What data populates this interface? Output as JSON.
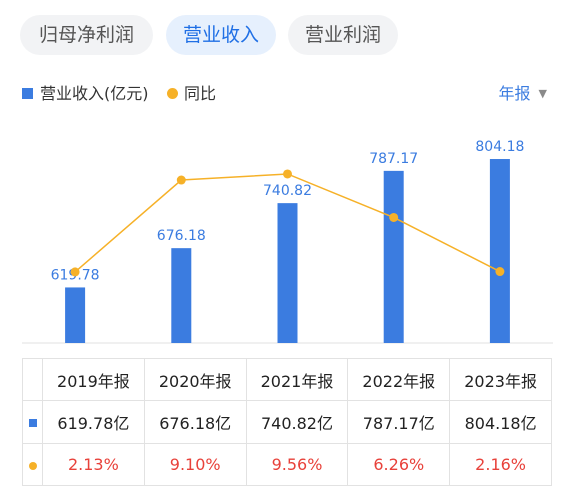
{
  "tabs": [
    {
      "label": "归母净利润",
      "active": false
    },
    {
      "label": "营业收入",
      "active": true
    },
    {
      "label": "营业利润",
      "active": false
    }
  ],
  "legend": {
    "bar_label": "营业收入(亿元)",
    "line_label": "同比"
  },
  "period_selector": {
    "value": "年报"
  },
  "colors": {
    "bar": "#3b7ce0",
    "line": "#f6b128",
    "negative_text": "#e8413a",
    "accent": "#1f6fe5"
  },
  "chart_data": {
    "type": "bar",
    "categories": [
      "2019年报",
      "2020年报",
      "2021年报",
      "2022年报",
      "2023年报"
    ],
    "series": [
      {
        "name": "营业收入(亿元)",
        "type": "bar",
        "values": [
          619.78,
          676.18,
          740.82,
          787.17,
          804.18
        ]
      },
      {
        "name": "同比",
        "type": "line",
        "values": [
          2.13,
          9.1,
          9.56,
          6.26,
          2.16
        ]
      }
    ],
    "bar_labels": [
      "619.78",
      "676.18",
      "740.82",
      "787.17",
      "804.18"
    ]
  },
  "table": {
    "headers": [
      "2019年报",
      "2020年报",
      "2021年报",
      "2022年报",
      "2023年报"
    ],
    "revenue_row": [
      "619.78亿",
      "676.18亿",
      "740.82亿",
      "787.17亿",
      "804.18亿"
    ],
    "yoy_row": [
      "2.13%",
      "9.10%",
      "9.56%",
      "6.26%",
      "2.16%"
    ]
  }
}
